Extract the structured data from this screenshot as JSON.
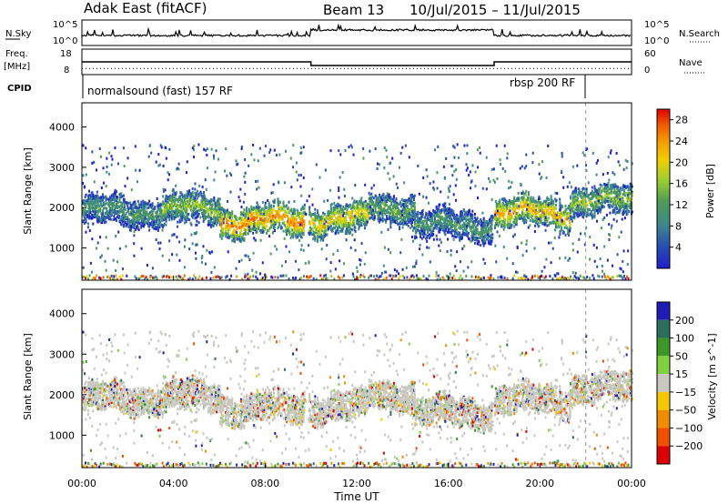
{
  "header": {
    "station": "Adak East (fitACF)",
    "beam": "Beam 13",
    "date_range": "10/Jul/2015 – 11/Jul/2015"
  },
  "panels": {
    "nsky": {
      "left_label": "N.Sky",
      "right_label": "N.Search",
      "ticks": [
        "10^5",
        "10^0"
      ]
    },
    "freq": {
      "left_label_line1": "Freq.",
      "left_label_line2": "[MHz]",
      "left_ticks": [
        "18",
        "8"
      ],
      "right_label": "Nave",
      "right_ticks": [
        "60",
        "0"
      ]
    },
    "cpid": {
      "label": "CPID",
      "programs": [
        {
          "name": "normalsound (fast) 157 RF",
          "start_hour": 0
        },
        {
          "name": "rbsp 200 RF",
          "start_hour": 22
        }
      ]
    }
  },
  "axes": {
    "xlabel": "Time UT",
    "xticks": [
      "00:00",
      "04:00",
      "08:00",
      "12:00",
      "16:00",
      "20:00",
      "00:00"
    ],
    "ylabel": "Slant Range [km]",
    "yticks": [
      "1000",
      "2000",
      "3000",
      "4000"
    ]
  },
  "colorbars": {
    "power": {
      "label": "Power [dB]",
      "ticks": [
        "4",
        "8",
        "12",
        "16",
        "20",
        "24",
        "28"
      ]
    },
    "velocity": {
      "label": "Velocity [m s^-1]",
      "ticks": [
        "200",
        "100",
        "50",
        "15",
        "−15",
        "−50",
        "−100",
        "−200"
      ]
    }
  },
  "colors": {
    "power_scale": [
      "#1e1ecc",
      "#2a4fb0",
      "#3f8a8a",
      "#4f9a55",
      "#9acd32",
      "#f0d000",
      "#f59a00",
      "#f05a00",
      "#e00000"
    ],
    "velocity_scale": [
      "#1e1eb4",
      "#2d6e5a",
      "#3c9628",
      "#80d040",
      "#c8c8c0",
      "#f5c800",
      "#f08c00",
      "#f05000",
      "#dc0000"
    ],
    "ground_scatter": "#c8c8c0"
  },
  "chart_data": [
    {
      "type": "heatmap",
      "name": "power",
      "xlabel": "Time UT",
      "ylabel": "Slant Range [km]",
      "xlim": [
        0,
        24
      ],
      "ylim": [
        200,
        4600
      ],
      "colorbar": "Power [dB]",
      "clim": [
        0,
        30
      ],
      "echo_bands": [
        {
          "t_start": 0.0,
          "t_end": 3.5,
          "r_center": 1950,
          "power": 10
        },
        {
          "t_start": 3.5,
          "t_end": 6.0,
          "r_center": 2000,
          "power": 14
        },
        {
          "t_start": 6.0,
          "t_end": 9.7,
          "r_center": 1700,
          "power": 22
        },
        {
          "t_start": 9.9,
          "t_end": 12.5,
          "r_center": 1750,
          "power": 18
        },
        {
          "t_start": 12.5,
          "t_end": 14.5,
          "r_center": 2050,
          "power": 12
        },
        {
          "t_start": 14.5,
          "t_end": 17.9,
          "r_center": 1600,
          "power": 10
        },
        {
          "t_start": 18.0,
          "t_end": 21.3,
          "r_center": 1900,
          "power": 20
        },
        {
          "t_start": 21.3,
          "t_end": 24.0,
          "r_center": 2200,
          "power": 14
        }
      ]
    },
    {
      "type": "heatmap",
      "name": "velocity",
      "xlabel": "Time UT",
      "ylabel": "Slant Range [km]",
      "xlim": [
        0,
        24
      ],
      "ylim": [
        200,
        4600
      ],
      "colorbar": "Velocity [m s^-1]",
      "clim": [
        -250,
        250
      ],
      "note": "ground scatter shown in grey"
    },
    {
      "type": "line",
      "name": "freq",
      "x": [
        0,
        10,
        10,
        18,
        18,
        24
      ],
      "y": [
        13.0,
        13.0,
        11.0,
        11.0,
        13.0,
        13.0
      ]
    }
  ]
}
